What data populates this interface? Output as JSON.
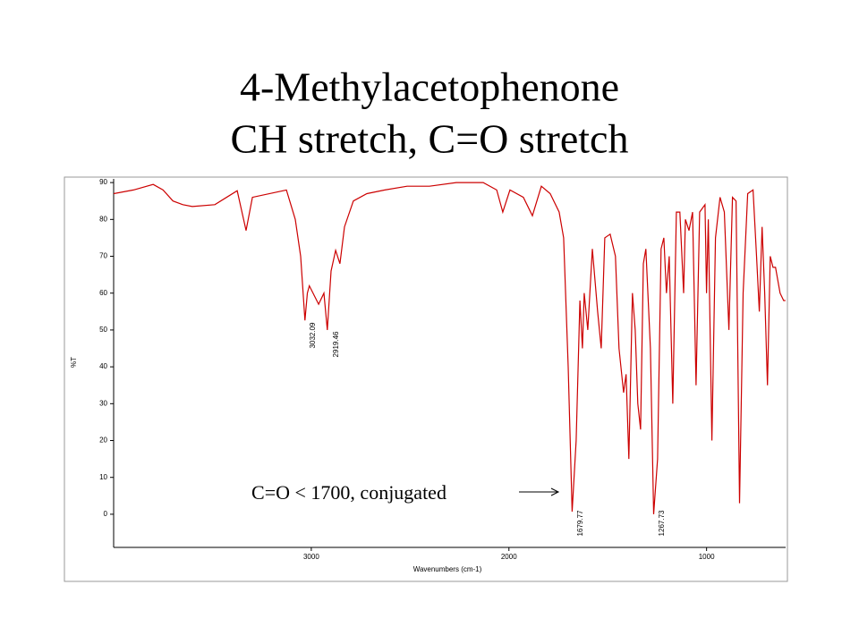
{
  "chart_data": {
    "type": "line",
    "title": "4-Methylacetophenone",
    "subtitle": "CH stretch, C=O stretch",
    "x_label": "Wavenumbers (cm-1)",
    "y_label": "%T",
    "annotation": "C=O < 1700, conjugated",
    "peak_labels": [
      "3032.09",
      "2919.46",
      "1679.77",
      "1267.73"
    ],
    "color": "#cc0000",
    "xlim": [
      4000,
      600
    ],
    "ylim": [
      -9,
      91
    ],
    "xticks": [
      3000,
      2000,
      1000
    ],
    "yticks": [
      0,
      10,
      20,
      30,
      40,
      50,
      60,
      70,
      80,
      90
    ],
    "x": [
      4000,
      3900,
      3800,
      3750,
      3700,
      3650,
      3602,
      3488,
      3375,
      3330,
      3298,
      3126,
      3081,
      3054,
      3032,
      3020,
      3010,
      2963,
      2936,
      2919,
      2900,
      2877,
      2855,
      2832,
      2787,
      2719,
      2628,
      2515,
      2402,
      2266,
      2130,
      2062,
      2031,
      1995,
      1927,
      1881,
      1836,
      1791,
      1746,
      1723,
      1700,
      1680,
      1660,
      1641,
      1628,
      1619,
      1601,
      1578,
      1551,
      1533,
      1515,
      1488,
      1461,
      1443,
      1420,
      1407,
      1393,
      1375,
      1361,
      1348,
      1334,
      1320,
      1307,
      1284,
      1268,
      1248,
      1230,
      1216,
      1203,
      1189,
      1171,
      1153,
      1135,
      1116,
      1107,
      1089,
      1071,
      1053,
      1035,
      1008,
      1000,
      991,
      973,
      955,
      932,
      910,
      887,
      869,
      851,
      833,
      815,
      792,
      765,
      747,
      733,
      719,
      706,
      692,
      678,
      664,
      651,
      628,
      610,
      601
    ],
    "values": [
      87,
      88,
      89.5,
      88,
      85,
      84,
      83.5,
      84,
      87.8,
      77,
      86,
      88,
      80,
      70,
      52.6,
      60,
      62,
      57,
      60,
      50,
      66,
      71.6,
      68,
      78,
      85,
      87,
      88,
      89,
      89,
      90,
      90,
      88,
      82,
      88,
      86,
      81,
      89,
      87,
      82,
      75,
      40,
      0.7,
      20,
      58,
      45,
      60,
      50,
      72,
      55,
      45,
      75,
      76,
      70,
      45,
      33,
      38,
      15,
      60,
      50,
      30,
      23,
      68,
      72,
      45,
      0,
      15,
      72,
      75,
      60,
      70,
      30,
      82,
      82,
      60,
      80,
      77,
      82,
      35,
      82,
      84,
      60,
      80,
      20,
      75,
      86,
      82,
      50,
      86,
      85,
      3,
      60,
      87,
      88,
      70,
      55,
      78,
      60,
      35,
      70,
      67,
      67,
      60,
      58,
      58
    ]
  }
}
